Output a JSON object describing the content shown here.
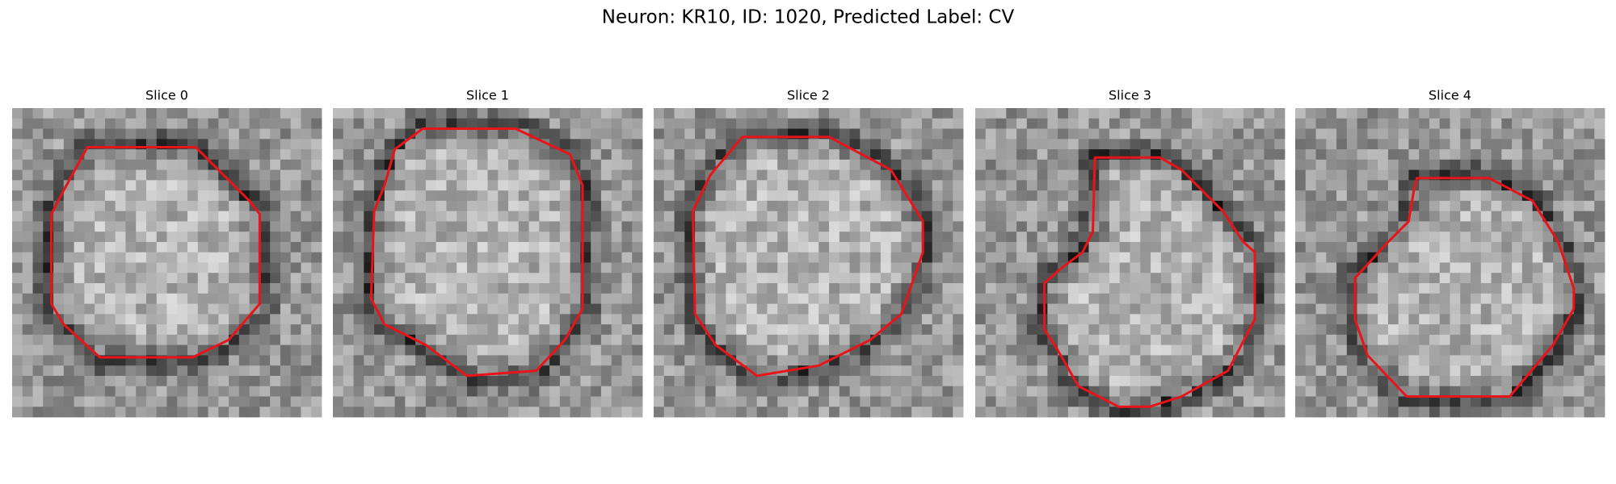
{
  "title": "Neuron: KR10, ID: 1020, Predicted Label: CV",
  "panels": [
    {
      "label": "Slice 0"
    },
    {
      "label": "Slice 1"
    },
    {
      "label": "Slice 2"
    },
    {
      "label": "Slice 3"
    },
    {
      "label": "Slice 4"
    }
  ]
}
